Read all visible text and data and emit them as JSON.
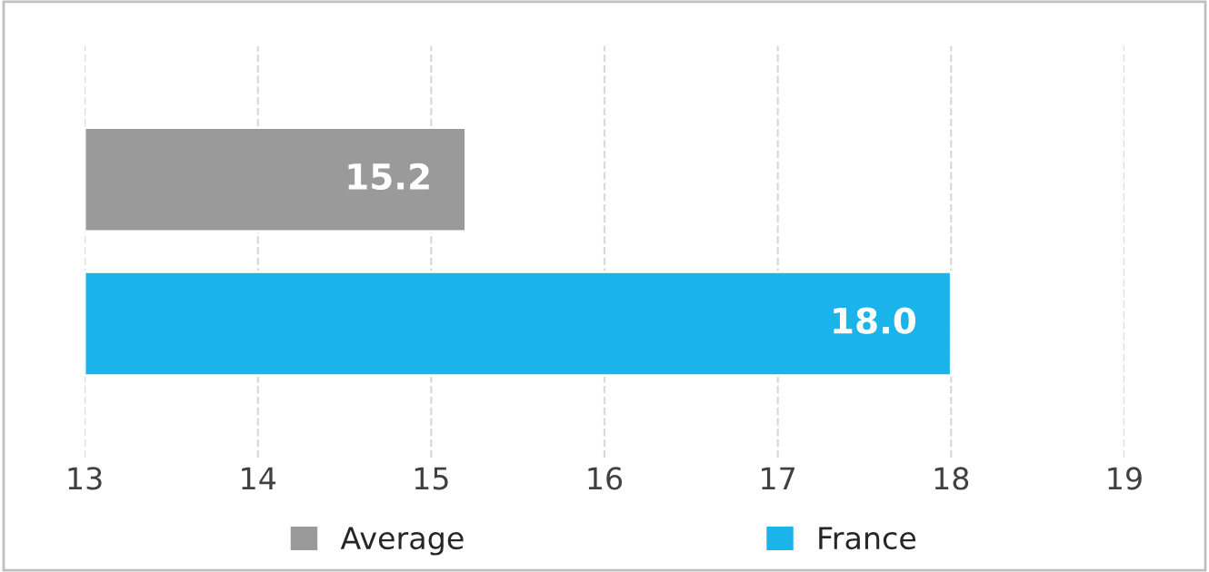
{
  "chart_data": {
    "type": "bar",
    "orientation": "horizontal",
    "categories": [
      null
    ],
    "series": [
      {
        "name": "Average",
        "color": "#9a9a9a",
        "values": [
          15.2
        ],
        "value_labels": [
          "15.2"
        ]
      },
      {
        "name": "France",
        "color": "#1ab4ea",
        "values": [
          18.0
        ],
        "value_labels": [
          "18.0"
        ]
      }
    ],
    "xlim": [
      13,
      19
    ],
    "xticks": [
      13,
      14,
      15,
      16,
      17,
      18,
      19
    ],
    "grid": "x",
    "legend": "bottom"
  }
}
